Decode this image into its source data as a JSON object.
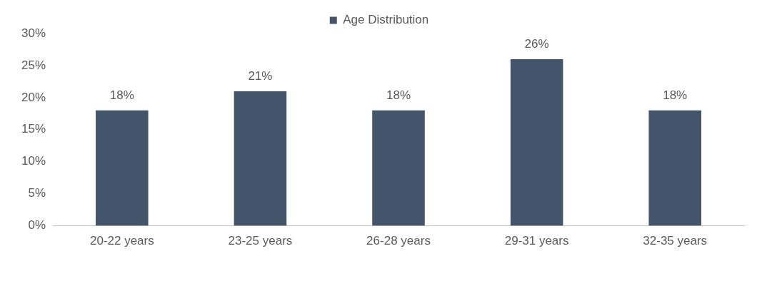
{
  "chart_data": {
    "type": "bar",
    "categories": [
      "20-22 years",
      "23-25 years",
      "26-28 years",
      "29-31 years",
      "32-35 years"
    ],
    "series": [
      {
        "name": "Age Distribution",
        "color": "#44546a",
        "values": [
          18,
          21,
          18,
          26,
          18
        ]
      }
    ],
    "value_labels": [
      "18%",
      "21%",
      "18%",
      "26%",
      "18%"
    ],
    "ylim": [
      0,
      30
    ],
    "yticks": [
      {
        "value": 0,
        "label": "0%"
      },
      {
        "value": 5,
        "label": "5%"
      },
      {
        "value": 10,
        "label": "10%"
      },
      {
        "value": 15,
        "label": "15%"
      },
      {
        "value": 20,
        "label": "20%"
      },
      {
        "value": 25,
        "label": "25%"
      },
      {
        "value": 30,
        "label": "30%"
      }
    ],
    "grid": false,
    "legend": "top"
  }
}
